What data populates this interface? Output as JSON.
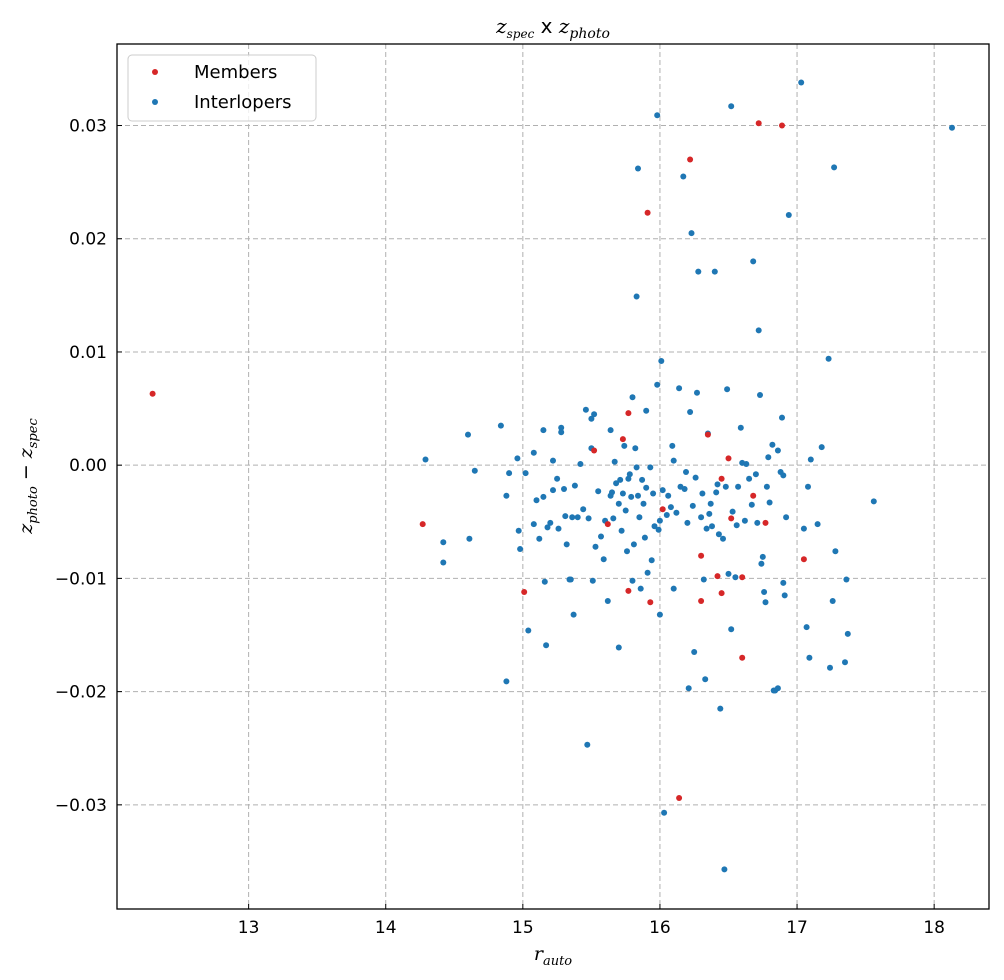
{
  "chart_data": {
    "type": "scatter",
    "title": {
      "z1": "z",
      "s1": "spec",
      "mid": " x ",
      "z2": "z",
      "s2": "photo"
    },
    "xlabel": {
      "base": "r",
      "sub": "auto"
    },
    "ylabel": {
      "a": "z",
      "a_sub": "photo",
      "op": " − ",
      "b": "z",
      "b_sub": "spec"
    },
    "xlim": [
      12.04,
      18.4
    ],
    "ylim": [
      -0.0392,
      0.0372
    ],
    "xticks": [
      13,
      14,
      15,
      16,
      17,
      18
    ],
    "yticks": [
      -0.03,
      -0.02,
      -0.01,
      0.0,
      0.01,
      0.02,
      0.03
    ],
    "xtick_labels": [
      "13",
      "14",
      "15",
      "16",
      "17",
      "18"
    ],
    "ytick_labels": [
      "−0.03",
      "−0.02",
      "−0.01",
      "0.00",
      "0.01",
      "0.02",
      "0.03"
    ],
    "grid": true,
    "legend_position": "top-left",
    "series": [
      {
        "name": "Members",
        "color": "#d62728",
        "points": [
          [
            12.3,
            0.0063
          ],
          [
            14.27,
            -0.0052
          ],
          [
            15.01,
            -0.0112
          ],
          [
            15.52,
            0.0013
          ],
          [
            15.62,
            -0.0052
          ],
          [
            15.73,
            0.0023
          ],
          [
            15.77,
            0.0046
          ],
          [
            15.77,
            -0.0111
          ],
          [
            15.91,
            0.0223
          ],
          [
            15.93,
            -0.0121
          ],
          [
            16.02,
            -0.0039
          ],
          [
            16.14,
            -0.0294
          ],
          [
            16.22,
            0.027
          ],
          [
            16.3,
            -0.008
          ],
          [
            16.3,
            -0.012
          ],
          [
            16.35,
            0.0027
          ],
          [
            16.42,
            -0.0098
          ],
          [
            16.45,
            -0.0012
          ],
          [
            16.45,
            -0.0113
          ],
          [
            16.5,
            0.0006
          ],
          [
            16.52,
            -0.0047
          ],
          [
            16.6,
            -0.017
          ],
          [
            16.6,
            -0.0099
          ],
          [
            16.68,
            -0.0027
          ],
          [
            16.72,
            0.0302
          ],
          [
            16.77,
            -0.0051
          ],
          [
            16.89,
            0.03
          ],
          [
            17.05,
            -0.0083
          ]
        ]
      },
      {
        "name": "Interlopers",
        "color": "#1f77b4",
        "points": [
          [
            14.29,
            0.0005
          ],
          [
            14.42,
            -0.0068
          ],
          [
            14.42,
            -0.0086
          ],
          [
            14.6,
            0.0027
          ],
          [
            14.61,
            -0.0065
          ],
          [
            14.65,
            -0.0005
          ],
          [
            14.84,
            0.0035
          ],
          [
            14.88,
            -0.0027
          ],
          [
            14.9,
            -0.0007
          ],
          [
            14.88,
            -0.0191
          ],
          [
            14.96,
            0.0006
          ],
          [
            14.97,
            -0.0058
          ],
          [
            14.98,
            -0.0074
          ],
          [
            15.02,
            -0.0007
          ],
          [
            15.04,
            -0.0146
          ],
          [
            15.08,
            -0.0052
          ],
          [
            15.08,
            0.0011
          ],
          [
            15.1,
            -0.0031
          ],
          [
            15.12,
            -0.0065
          ],
          [
            15.15,
            0.0031
          ],
          [
            15.15,
            -0.0028
          ],
          [
            15.16,
            -0.0103
          ],
          [
            15.17,
            -0.0159
          ],
          [
            15.18,
            -0.0055
          ],
          [
            15.2,
            -0.0051
          ],
          [
            15.22,
            -0.0022
          ],
          [
            15.22,
            0.0004
          ],
          [
            15.25,
            -0.0012
          ],
          [
            15.26,
            -0.0056
          ],
          [
            15.28,
            0.0033
          ],
          [
            15.28,
            0.0029
          ],
          [
            15.3,
            -0.0021
          ],
          [
            15.31,
            -0.0045
          ],
          [
            15.32,
            -0.007
          ],
          [
            15.34,
            -0.0101
          ],
          [
            15.35,
            -0.0101
          ],
          [
            15.36,
            -0.0046
          ],
          [
            15.37,
            -0.0132
          ],
          [
            15.38,
            -0.0018
          ],
          [
            15.4,
            -0.0046
          ],
          [
            15.42,
            0.0001
          ],
          [
            15.44,
            -0.0039
          ],
          [
            15.46,
            0.0049
          ],
          [
            15.47,
            -0.0247
          ],
          [
            15.48,
            -0.0047
          ],
          [
            15.5,
            0.0015
          ],
          [
            15.5,
            0.0041
          ],
          [
            15.51,
            -0.0102
          ],
          [
            15.52,
            0.0045
          ],
          [
            15.53,
            -0.0072
          ],
          [
            15.55,
            -0.0023
          ],
          [
            15.57,
            -0.0063
          ],
          [
            15.59,
            -0.0083
          ],
          [
            15.6,
            -0.0049
          ],
          [
            15.62,
            -0.012
          ],
          [
            15.64,
            -0.0027
          ],
          [
            15.64,
            0.0031
          ],
          [
            15.65,
            -0.0024
          ],
          [
            15.66,
            -0.0047
          ],
          [
            15.67,
            0.0003
          ],
          [
            15.68,
            -0.0016
          ],
          [
            15.7,
            -0.0034
          ],
          [
            15.7,
            -0.0161
          ],
          [
            15.71,
            -0.0013
          ],
          [
            15.72,
            -0.0058
          ],
          [
            15.73,
            -0.0025
          ],
          [
            15.74,
            0.0017
          ],
          [
            15.75,
            -0.004
          ],
          [
            15.76,
            -0.0076
          ],
          [
            15.77,
            -0.0012
          ],
          [
            15.78,
            -0.0008
          ],
          [
            15.79,
            -0.0028
          ],
          [
            15.8,
            -0.0102
          ],
          [
            15.8,
            0.006
          ],
          [
            15.81,
            -0.007
          ],
          [
            15.82,
            0.0015
          ],
          [
            15.83,
            -0.0002
          ],
          [
            15.83,
            0.0149
          ],
          [
            15.84,
            -0.0027
          ],
          [
            15.84,
            0.0262
          ],
          [
            15.85,
            -0.0046
          ],
          [
            15.86,
            -0.0109
          ],
          [
            15.87,
            -0.0013
          ],
          [
            15.88,
            -0.0034
          ],
          [
            15.89,
            -0.0064
          ],
          [
            15.9,
            -0.002
          ],
          [
            15.9,
            0.0048
          ],
          [
            15.91,
            -0.0095
          ],
          [
            15.93,
            -0.0002
          ],
          [
            15.94,
            -0.0084
          ],
          [
            15.95,
            -0.0025
          ],
          [
            15.96,
            -0.0054
          ],
          [
            15.98,
            0.0309
          ],
          [
            15.98,
            0.0071
          ],
          [
            15.99,
            -0.0057
          ],
          [
            16.0,
            -0.0049
          ],
          [
            16.0,
            -0.0132
          ],
          [
            16.01,
            0.0092
          ],
          [
            16.02,
            -0.0022
          ],
          [
            16.03,
            -0.0307
          ],
          [
            16.05,
            -0.0044
          ],
          [
            16.06,
            -0.0027
          ],
          [
            16.08,
            -0.0037
          ],
          [
            16.09,
            0.0017
          ],
          [
            16.1,
            0.0004
          ],
          [
            16.1,
            -0.0109
          ],
          [
            16.12,
            -0.0042
          ],
          [
            16.14,
            0.0068
          ],
          [
            16.15,
            -0.0019
          ],
          [
            16.17,
            0.0255
          ],
          [
            16.18,
            -0.0021
          ],
          [
            16.19,
            -0.0006
          ],
          [
            16.2,
            -0.0051
          ],
          [
            16.21,
            -0.0197
          ],
          [
            16.22,
            0.0047
          ],
          [
            16.23,
            0.0205
          ],
          [
            16.24,
            -0.0036
          ],
          [
            16.25,
            -0.0165
          ],
          [
            16.26,
            -0.0011
          ],
          [
            16.27,
            0.0064
          ],
          [
            16.28,
            0.0171
          ],
          [
            16.3,
            -0.0046
          ],
          [
            16.31,
            -0.0025
          ],
          [
            16.32,
            -0.0101
          ],
          [
            16.33,
            -0.0189
          ],
          [
            16.34,
            -0.0056
          ],
          [
            16.35,
            0.0028
          ],
          [
            16.36,
            -0.0043
          ],
          [
            16.37,
            -0.0034
          ],
          [
            16.38,
            -0.0054
          ],
          [
            16.4,
            0.0171
          ],
          [
            16.41,
            -0.0024
          ],
          [
            16.42,
            -0.0017
          ],
          [
            16.43,
            -0.0061
          ],
          [
            16.44,
            -0.0215
          ],
          [
            16.46,
            -0.0065
          ],
          [
            16.47,
            -0.0357
          ],
          [
            16.48,
            -0.0019
          ],
          [
            16.49,
            0.0067
          ],
          [
            16.5,
            -0.0096
          ],
          [
            16.52,
            0.0317
          ],
          [
            16.52,
            -0.0145
          ],
          [
            16.53,
            -0.0041
          ],
          [
            16.55,
            -0.0099
          ],
          [
            16.56,
            -0.0053
          ],
          [
            16.57,
            -0.0019
          ],
          [
            16.59,
            0.0033
          ],
          [
            16.6,
            0.0002
          ],
          [
            16.62,
            -0.0049
          ],
          [
            16.63,
            0.0001
          ],
          [
            16.65,
            -0.0012
          ],
          [
            16.67,
            -0.0035
          ],
          [
            16.68,
            0.018
          ],
          [
            16.7,
            -0.0008
          ],
          [
            16.71,
            -0.0051
          ],
          [
            16.72,
            0.0119
          ],
          [
            16.73,
            0.0062
          ],
          [
            16.74,
            -0.0087
          ],
          [
            16.75,
            -0.0081
          ],
          [
            16.76,
            -0.0112
          ],
          [
            16.77,
            -0.0121
          ],
          [
            16.78,
            -0.0019
          ],
          [
            16.79,
            0.0007
          ],
          [
            16.8,
            -0.0033
          ],
          [
            16.82,
            0.0018
          ],
          [
            16.83,
            -0.0199
          ],
          [
            16.84,
            -0.0199
          ],
          [
            16.86,
            0.0013
          ],
          [
            16.86,
            -0.0197
          ],
          [
            16.88,
            -0.0006
          ],
          [
            16.89,
            0.0042
          ],
          [
            16.9,
            -0.0009
          ],
          [
            16.9,
            -0.0104
          ],
          [
            16.91,
            -0.0115
          ],
          [
            16.92,
            -0.0046
          ],
          [
            16.94,
            0.0221
          ],
          [
            17.03,
            0.0338
          ],
          [
            17.05,
            -0.0056
          ],
          [
            17.07,
            -0.0143
          ],
          [
            17.08,
            -0.0019
          ],
          [
            17.09,
            -0.017
          ],
          [
            17.1,
            0.0005
          ],
          [
            17.15,
            -0.0052
          ],
          [
            17.18,
            0.0016
          ],
          [
            17.23,
            0.0094
          ],
          [
            17.24,
            -0.0179
          ],
          [
            17.26,
            -0.012
          ],
          [
            17.27,
            0.0263
          ],
          [
            17.28,
            -0.0076
          ],
          [
            17.35,
            -0.0174
          ],
          [
            17.36,
            -0.0101
          ],
          [
            17.37,
            -0.0149
          ],
          [
            17.56,
            -0.0032
          ],
          [
            18.13,
            0.0298
          ]
        ]
      }
    ]
  }
}
